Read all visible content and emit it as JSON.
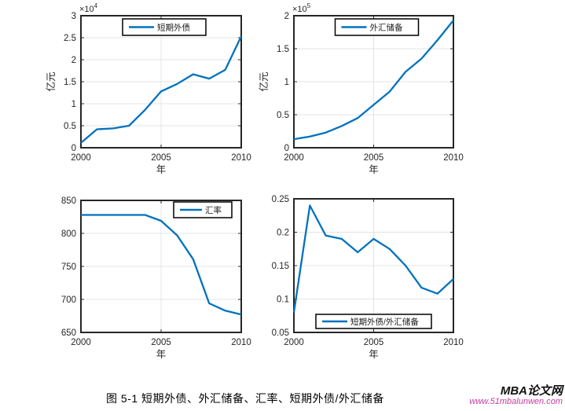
{
  "figure": {
    "caption": "图 5-1 短期外债、外汇储备、汇率、短期外债/外汇储备",
    "watermark": {
      "brand": "MBA论文网",
      "url": "www.51mbalunwen.com"
    }
  },
  "colors": {
    "line": "#0072BD",
    "axis": "#262626",
    "grid": "#e4e4e4",
    "text": "#262626",
    "legend_border": "#000000",
    "legend_text": "#1a1a1a",
    "watermark_url": "#c83da0",
    "background": "#ffffff"
  },
  "chart_data": [
    {
      "name": "short-term-external-debt",
      "type": "line",
      "legend": "短期外债",
      "legend_loc": "north",
      "scale_label": {
        "base": "×10",
        "exp": "4"
      },
      "xlabel": "年",
      "ylabel": "亿元",
      "x": [
        2000,
        2001,
        2002,
        2003,
        2004,
        2005,
        2006,
        2007,
        2008,
        2009,
        2010
      ],
      "values": [
        0.11,
        0.42,
        0.44,
        0.5,
        0.86,
        1.28,
        1.45,
        1.67,
        1.57,
        1.77,
        2.53
      ],
      "xlim": [
        2000,
        2010
      ],
      "ylim": [
        0,
        3
      ],
      "xticks": [
        2000,
        2005,
        2010
      ],
      "yticks": [
        0,
        0.5,
        1,
        1.5,
        2,
        2.5,
        3
      ],
      "grid": true
    },
    {
      "name": "fx-reserves",
      "type": "line",
      "legend": "外汇储备",
      "legend_loc": "north",
      "scale_label": {
        "base": "×10",
        "exp": "5"
      },
      "xlabel": "年",
      "ylabel": "亿元",
      "x": [
        2000,
        2001,
        2002,
        2003,
        2004,
        2005,
        2006,
        2007,
        2008,
        2009,
        2010
      ],
      "values": [
        0.13,
        0.17,
        0.23,
        0.33,
        0.45,
        0.65,
        0.85,
        1.15,
        1.35,
        1.63,
        1.93
      ],
      "xlim": [
        2000,
        2010
      ],
      "ylim": [
        0,
        2
      ],
      "xticks": [
        2000,
        2005,
        2010
      ],
      "yticks": [
        0,
        0.5,
        1,
        1.5,
        2
      ],
      "grid": true
    },
    {
      "name": "exchange-rate",
      "type": "line",
      "legend": "汇率",
      "legend_loc": "northeast",
      "scale_label": null,
      "xlabel": "年",
      "ylabel": "",
      "x": [
        2000,
        2001,
        2002,
        2003,
        2004,
        2005,
        2006,
        2007,
        2008,
        2009,
        2010
      ],
      "values": [
        828,
        828,
        828,
        828,
        828,
        819,
        797,
        761,
        694,
        683,
        677
      ],
      "xlim": [
        2000,
        2010
      ],
      "ylim": [
        650,
        850
      ],
      "xticks": [
        2000,
        2005,
        2010
      ],
      "yticks": [
        650,
        700,
        750,
        800,
        850
      ],
      "grid": true
    },
    {
      "name": "debt-to-reserves-ratio",
      "type": "line",
      "legend": "短期外债/外汇储备",
      "legend_loc": "south",
      "scale_label": null,
      "xlabel": "年",
      "ylabel": "",
      "x": [
        2000,
        2001,
        2002,
        2003,
        2004,
        2005,
        2006,
        2007,
        2008,
        2009,
        2010
      ],
      "values": [
        0.08,
        0.24,
        0.195,
        0.19,
        0.17,
        0.19,
        0.175,
        0.15,
        0.117,
        0.108,
        0.13
      ],
      "xlim": [
        2000,
        2010
      ],
      "ylim": [
        0.05,
        0.25
      ],
      "xticks": [
        2000,
        2005,
        2010
      ],
      "yticks": [
        0.05,
        0.1,
        0.15,
        0.2,
        0.25
      ],
      "grid": true
    }
  ]
}
